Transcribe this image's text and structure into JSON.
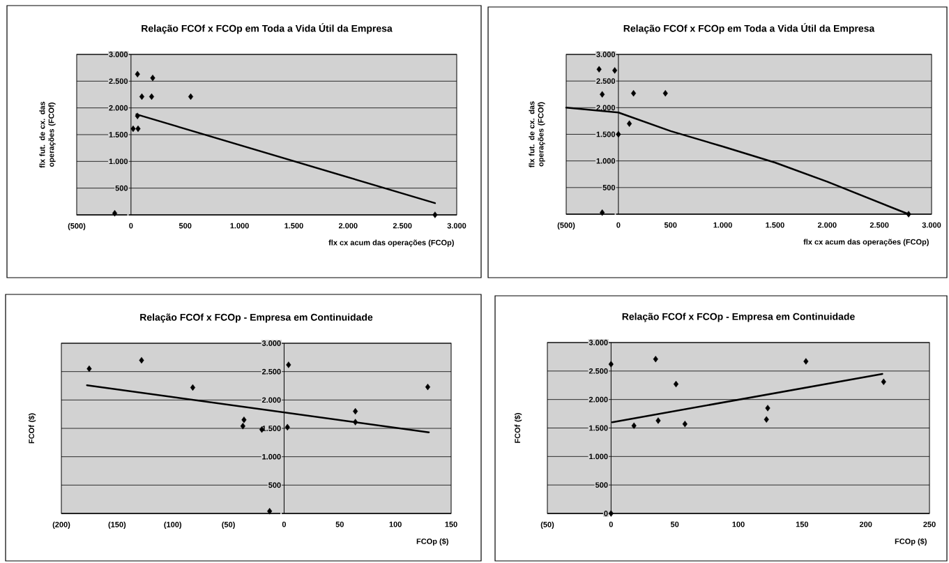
{
  "chart_data": [
    {
      "type": "scatter",
      "title": "Relação FCOf x FCOp em Toda a Vida Útil da Empresa",
      "xlabel": "flx cx acum das operações (FCOp)",
      "ylabel": "flx fut. de cx. das operações (FCOf)",
      "xlim": [
        -500,
        3000
      ],
      "ylim": [
        0,
        3000
      ],
      "xticks": [
        {
          "value": -500,
          "label": "(500)"
        },
        0,
        500,
        {
          "value": 1000,
          "label": "1.000"
        },
        {
          "value": 1500,
          "label": "1.500"
        },
        {
          "value": 2000,
          "label": "2.000"
        },
        {
          "value": 2500,
          "label": "2.500"
        },
        {
          "value": 3000,
          "label": "3.000"
        }
      ],
      "yticks": [
        {
          "value": 0,
          "label": null
        },
        500,
        {
          "value": 1000,
          "label": "1.000"
        },
        {
          "value": 1500,
          "label": "1.500"
        },
        {
          "value": 2000,
          "label": "2.000"
        },
        {
          "value": 2500,
          "label": "2.500"
        },
        {
          "value": 3000,
          "label": "3.000"
        }
      ],
      "grid": "y",
      "series": [
        {
          "color": "#000000",
          "marker": "diamond",
          "x": [
            60,
            200,
            100,
            190,
            550,
            60,
            20,
            65,
            -150,
            2800
          ],
          "values": [
            2630,
            2560,
            2210,
            2210,
            2210,
            1850,
            1610,
            1610,
            30,
            0
          ]
        },
        {
          "type": "line",
          "color": "#000000",
          "x": [
            50,
            2800
          ],
          "values": [
            1880,
            220
          ]
        }
      ]
    },
    {
      "type": "scatter",
      "title": "Relação FCOf x FCOp em Toda a Vida Útil da Empresa",
      "xlabel": "flx cx acum das operações (FCOp)",
      "ylabel": "flx fut. de cx. das operações (FCOf)",
      "xlim": [
        -500,
        3000
      ],
      "ylim": [
        0,
        3000
      ],
      "xticks": [
        {
          "value": -500,
          "label": "(500)"
        },
        0,
        500,
        {
          "value": 1000,
          "label": "1.000"
        },
        {
          "value": 1500,
          "label": "1.500"
        },
        {
          "value": 2000,
          "label": "2.000"
        },
        {
          "value": 2500,
          "label": "2.500"
        },
        {
          "value": 3000,
          "label": "3.000"
        }
      ],
      "yticks": [
        {
          "value": 0,
          "label": null
        },
        500,
        {
          "value": 1000,
          "label": "1.000"
        },
        {
          "value": 1500,
          "label": "1.500"
        },
        {
          "value": 2000,
          "label": "2.000"
        },
        {
          "value": 2500,
          "label": "2.500"
        },
        {
          "value": 3000,
          "label": "3.000"
        }
      ],
      "grid": "y",
      "series": [
        {
          "color": "#000000",
          "marker": "diamond",
          "x": [
            -185,
            -35,
            -155,
            145,
            450,
            105,
            0,
            -155,
            2780
          ],
          "values": [
            2720,
            2700,
            2250,
            2270,
            2270,
            1700,
            1500,
            30,
            0
          ]
        },
        {
          "type": "line",
          "color": "#000000",
          "x": [
            -500,
            0,
            500,
            1000,
            1500,
            2000,
            2780
          ],
          "values": [
            2000,
            1910,
            1560,
            1270,
            970,
            610,
            0
          ]
        }
      ]
    },
    {
      "type": "scatter",
      "title": "Relação FCOf x FCOp - Empresa em Continuidade",
      "xlabel": "FCOp ($)",
      "ylabel": "FCOf ($)",
      "xlim": [
        -200,
        150
      ],
      "ylim": [
        0,
        3000
      ],
      "xticks": [
        {
          "value": -200,
          "label": "(200)"
        },
        {
          "value": -150,
          "label": "(150)"
        },
        {
          "value": -100,
          "label": "(100)"
        },
        {
          "value": -50,
          "label": "(50)"
        },
        0,
        50,
        100,
        150
      ],
      "yticks": [
        {
          "value": 0,
          "label": null
        },
        500,
        {
          "value": 1000,
          "label": "1.000"
        },
        {
          "value": 1500,
          "label": "1.500"
        },
        {
          "value": 2000,
          "label": "2.000"
        },
        {
          "value": 2500,
          "label": "2.500"
        },
        {
          "value": 3000,
          "label": "3.000"
        }
      ],
      "grid": "y",
      "series": [
        {
          "color": "#000000",
          "marker": "diamond",
          "x": [
            -175,
            -128,
            -82,
            -36,
            -37,
            -20,
            4,
            3,
            64,
            64,
            129,
            -13
          ],
          "values": [
            2550,
            2700,
            2220,
            1650,
            1540,
            1480,
            2620,
            1520,
            1800,
            1610,
            2230,
            40
          ]
        },
        {
          "type": "line",
          "color": "#000000",
          "x": [
            -177,
            130
          ],
          "values": [
            2260,
            1430
          ]
        }
      ]
    },
    {
      "type": "scatter",
      "title": "Relação FCOf x FCOp - Empresa em Continuidade",
      "xlabel": "FCOp ($)",
      "ylabel": "FCOf ($)",
      "xlim": [
        -50,
        250
      ],
      "ylim": [
        0,
        3000
      ],
      "xticks": [
        {
          "value": -50,
          "label": "(50)"
        },
        0,
        50,
        100,
        150,
        200,
        250
      ],
      "yticks": [
        0,
        500,
        {
          "value": 1000,
          "label": "1.000"
        },
        {
          "value": 1500,
          "label": "1.500"
        },
        {
          "value": 2000,
          "label": "2.000"
        },
        {
          "value": 2500,
          "label": "2.500"
        },
        {
          "value": 3000,
          "label": "3.000"
        }
      ],
      "grid": "y",
      "series": [
        {
          "color": "#000000",
          "marker": "diamond",
          "x": [
            35,
            153,
            51,
            214,
            123,
            122,
            37,
            58,
            18,
            0,
            0
          ],
          "values": [
            2710,
            2670,
            2270,
            2310,
            1850,
            1650,
            1630,
            1570,
            1540,
            2620,
            0
          ]
        },
        {
          "type": "line",
          "color": "#000000",
          "x": [
            1,
            213
          ],
          "values": [
            1600,
            2450
          ]
        }
      ]
    }
  ]
}
